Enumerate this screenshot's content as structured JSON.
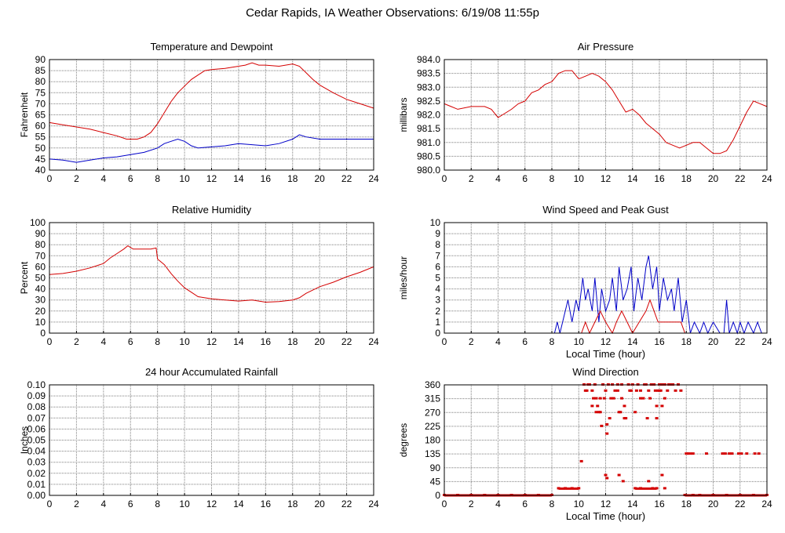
{
  "page": {
    "title": "Cedar Rapids, IA Weather Observations: 6/19/08 11:55p"
  },
  "colors": {
    "red": "#d40000",
    "blue": "#0000c8",
    "grid": "#7f7f7f"
  },
  "chart_data": [
    {
      "type": "line",
      "title": "Temperature and Dewpoint",
      "xlabel": "",
      "ylabel": "Fahrenheit",
      "xlim": [
        0,
        24
      ],
      "ylim": [
        40,
        90
      ],
      "xticks": [
        0,
        2,
        4,
        6,
        8,
        10,
        12,
        14,
        16,
        18,
        20,
        22,
        24
      ],
      "yticks": [
        40,
        45,
        50,
        55,
        60,
        65,
        70,
        75,
        80,
        85,
        90
      ],
      "ytick_labels": [
        "40",
        "45",
        "50",
        "55",
        "60",
        "65",
        "70",
        "75",
        "80",
        "85",
        "90"
      ],
      "grid": true,
      "series": [
        {
          "color": "#d40000",
          "x": [
            0,
            1,
            2,
            3,
            4,
            5,
            5.7,
            6.5,
            7,
            7.5,
            8,
            8.5,
            9,
            9.5,
            10,
            10.5,
            11,
            11.5,
            12,
            13,
            14,
            14.5,
            15,
            15.5,
            16,
            17,
            18,
            18.5,
            19,
            19.5,
            20,
            21,
            22,
            23,
            24
          ],
          "y": [
            61.5,
            60.5,
            59.5,
            58.5,
            57,
            55.5,
            54,
            54,
            55,
            57,
            61,
            66,
            71,
            75,
            78,
            81,
            83,
            85,
            85.5,
            86,
            87,
            87.5,
            88.5,
            87.5,
            87.5,
            87,
            88,
            87,
            84,
            81,
            78.5,
            75,
            72,
            70,
            68
          ]
        },
        {
          "color": "#0000c8",
          "x": [
            0,
            1,
            2,
            3,
            4,
            5,
            6,
            7,
            8,
            8.5,
            9,
            9.5,
            10,
            10.5,
            11,
            12,
            13,
            14,
            15,
            16,
            17,
            18,
            18.5,
            19,
            20,
            21,
            22,
            23,
            24
          ],
          "y": [
            45,
            44.5,
            43.5,
            44.5,
            45.5,
            46,
            47,
            48,
            50,
            52,
            53,
            54,
            53,
            51,
            50,
            50.5,
            51,
            52,
            51.5,
            51,
            52,
            54,
            56,
            55,
            54,
            54,
            54,
            54,
            54
          ]
        }
      ]
    },
    {
      "type": "line",
      "title": "Air Pressure",
      "xlabel": "",
      "ylabel": "millibars",
      "xlim": [
        0,
        24
      ],
      "ylim": [
        980.0,
        984.0
      ],
      "xticks": [
        0,
        2,
        4,
        6,
        8,
        10,
        12,
        14,
        16,
        18,
        20,
        22,
        24
      ],
      "yticks": [
        980.0,
        980.5,
        981.0,
        981.5,
        982.0,
        982.5,
        983.0,
        983.5,
        984.0
      ],
      "ytick_labels": [
        "980.0",
        "980.5",
        "981.0",
        "981.5",
        "982.0",
        "982.5",
        "983.0",
        "983.5",
        "984.0"
      ],
      "grid": true,
      "series": [
        {
          "color": "#d40000",
          "x": [
            0,
            0.5,
            1,
            2,
            3,
            3.5,
            4,
            5,
            5.5,
            6,
            6.5,
            7,
            7.5,
            8,
            8.5,
            9,
            9.5,
            10,
            10.5,
            11,
            11.5,
            12,
            12.5,
            13,
            13.5,
            14,
            14.5,
            15,
            15.5,
            16,
            16.5,
            17,
            17.5,
            18,
            18.5,
            19,
            19.5,
            20,
            20.5,
            21,
            21.5,
            22,
            22.5,
            23,
            23.5,
            24
          ],
          "y": [
            982.4,
            982.3,
            982.2,
            982.3,
            982.3,
            982.2,
            981.9,
            982.2,
            982.4,
            982.5,
            982.8,
            982.9,
            983.1,
            983.2,
            983.5,
            983.6,
            983.6,
            983.3,
            983.4,
            983.5,
            983.4,
            983.2,
            982.9,
            982.5,
            982.1,
            982.2,
            982.0,
            981.7,
            981.5,
            981.3,
            981.0,
            980.9,
            980.8,
            980.9,
            981.0,
            981.0,
            980.8,
            980.6,
            980.6,
            980.7,
            981.1,
            981.6,
            982.1,
            982.5,
            982.4,
            982.3
          ]
        }
      ]
    },
    {
      "type": "line",
      "title": "Relative Humidity",
      "xlabel": "",
      "ylabel": "Percent",
      "xlim": [
        0,
        24
      ],
      "ylim": [
        0,
        100
      ],
      "xticks": [
        0,
        2,
        4,
        6,
        8,
        10,
        12,
        14,
        16,
        18,
        20,
        22,
        24
      ],
      "yticks": [
        0,
        10,
        20,
        30,
        40,
        50,
        60,
        70,
        80,
        90,
        100
      ],
      "ytick_labels": [
        "0",
        "10",
        "20",
        "30",
        "40",
        "50",
        "60",
        "70",
        "80",
        "90",
        "100"
      ],
      "grid": true,
      "series": [
        {
          "color": "#d40000",
          "x": [
            0,
            1,
            2,
            3,
            4,
            4.5,
            5,
            5.5,
            5.8,
            6.2,
            7,
            7.5,
            7.9,
            8,
            8.5,
            9,
            9.5,
            10,
            10.5,
            11,
            11.5,
            12,
            13,
            14,
            15,
            16,
            17,
            18,
            18.5,
            19,
            20,
            21,
            22,
            23,
            24
          ],
          "y": [
            53,
            54,
            56,
            59,
            63,
            68,
            72,
            76,
            79,
            76,
            76,
            76,
            77,
            67,
            62,
            54,
            47,
            41,
            37,
            33,
            32,
            31,
            30,
            29,
            30,
            28,
            28.5,
            30,
            32,
            36,
            42,
            46,
            51,
            55,
            60
          ]
        }
      ]
    },
    {
      "type": "line",
      "title": "Wind Speed and Peak Gust",
      "xlabel": "Local Time (hour)",
      "ylabel": "miles/hour",
      "xlim": [
        0,
        24
      ],
      "ylim": [
        0,
        10
      ],
      "xticks": [
        0,
        2,
        4,
        6,
        8,
        10,
        12,
        14,
        16,
        18,
        20,
        22,
        24
      ],
      "yticks": [
        0,
        1,
        2,
        3,
        4,
        5,
        6,
        7,
        8,
        9,
        10
      ],
      "ytick_labels": [
        "0",
        "1",
        "2",
        "3",
        "4",
        "5",
        "6",
        "7",
        "8",
        "9",
        "10"
      ],
      "grid": true,
      "series": [
        {
          "color": "#0000c8",
          "x": [
            0,
            8.2,
            8.4,
            8.6,
            8.8,
            9.0,
            9.2,
            9.5,
            9.8,
            10.0,
            10.3,
            10.5,
            10.7,
            11.0,
            11.2,
            11.5,
            11.7,
            12.0,
            12.3,
            12.5,
            12.8,
            13.0,
            13.3,
            13.6,
            13.9,
            14.1,
            14.4,
            14.7,
            15.0,
            15.2,
            15.5,
            15.8,
            16.0,
            16.3,
            16.6,
            16.9,
            17.1,
            17.4,
            17.7,
            18.0,
            18.3,
            18.6,
            19.0,
            19.3,
            19.6,
            20.0,
            20.5,
            20.8,
            21.0,
            21.2,
            21.5,
            21.8,
            22.0,
            22.3,
            22.6,
            23.0,
            23.3,
            23.6
          ],
          "y": [
            0,
            0,
            1,
            0,
            1,
            2,
            3,
            1,
            3,
            2,
            5,
            3,
            4,
            2,
            5,
            1,
            4,
            2,
            3,
            5,
            2,
            6,
            3,
            4,
            6,
            2,
            5,
            3,
            6,
            7,
            4,
            6,
            2,
            5,
            3,
            4,
            2,
            5,
            1,
            3,
            0,
            1,
            0,
            1,
            0,
            1,
            0,
            0,
            3,
            0,
            1,
            0,
            1,
            0,
            1,
            0,
            1,
            0
          ]
        },
        {
          "color": "#d40000",
          "x": [
            0,
            10.2,
            10.5,
            10.8,
            11.2,
            11.6,
            12.0,
            12.5,
            12.8,
            13.2,
            13.6,
            14.0,
            14.5,
            15.0,
            15.3,
            15.6,
            15.9,
            16.2,
            16.6,
            17.0,
            17.3,
            17.6,
            17.9,
            18.2
          ],
          "y": [
            0,
            0,
            1,
            0,
            1,
            2,
            1,
            0,
            1,
            2,
            1,
            0,
            1,
            2,
            3,
            2,
            1,
            1,
            1,
            1,
            1,
            1,
            0,
            0
          ]
        }
      ]
    },
    {
      "type": "line",
      "title": "24 hour Accumulated Rainfall",
      "xlabel": "",
      "ylabel": "Inches",
      "xlim": [
        0,
        24
      ],
      "ylim": [
        0,
        0.1
      ],
      "xticks": [
        0,
        2,
        4,
        6,
        8,
        10,
        12,
        14,
        16,
        18,
        20,
        22,
        24
      ],
      "yticks": [
        0,
        0.01,
        0.02,
        0.03,
        0.04,
        0.05,
        0.06,
        0.07,
        0.08,
        0.09,
        0.1
      ],
      "ytick_labels": [
        "0.00",
        "0.01",
        "0.02",
        "0.03",
        "0.04",
        "0.05",
        "0.06",
        "0.07",
        "0.08",
        "0.09",
        "0.10"
      ],
      "grid": true,
      "series": [
        {
          "color": "#d40000",
          "x": [
            0,
            24
          ],
          "y": [
            0,
            0
          ]
        }
      ]
    },
    {
      "type": "scatter",
      "title": "Wind Direction",
      "xlabel": "Local Time (hour)",
      "ylabel": "degrees",
      "xlim": [
        0,
        24
      ],
      "ylim": [
        0,
        360
      ],
      "xticks": [
        0,
        2,
        4,
        6,
        8,
        10,
        12,
        14,
        16,
        18,
        20,
        22,
        24
      ],
      "yticks": [
        0,
        45,
        90,
        135,
        180,
        225,
        270,
        315,
        360
      ],
      "ytick_labels": [
        "0",
        "45",
        "90",
        "135",
        "180",
        "225",
        "270",
        "315",
        "360"
      ],
      "grid": true,
      "series": [
        {
          "color": "#d40000",
          "x": [
            10.2,
            10.4,
            10.6,
            10.8,
            11.0,
            11.1,
            11.2,
            11.3,
            11.4,
            11.5,
            11.6,
            11.7,
            11.8,
            12.0,
            12.1,
            12.2,
            12.4,
            12.6,
            12.7,
            12.9,
            13.0,
            13.2,
            13.4,
            13.5,
            13.7,
            13.9,
            14.0,
            14.3,
            14.4,
            14.6,
            14.8,
            15.0,
            15.2,
            15.4,
            15.6,
            15.7,
            15.8,
            16.0,
            16.1,
            16.2,
            16.4,
            16.6,
            16.8,
            17.0,
            17.2,
            17.4,
            17.6,
            11.0,
            11.3,
            11.6,
            12.1,
            12.5,
            13.1,
            13.4,
            13.8,
            14.2,
            14.9,
            15.3,
            15.9,
            16.3,
            10.5,
            10.7,
            11.9,
            12.3,
            12.9,
            13.2,
            14.6,
            15.1,
            15.5,
            15.8,
            16.0,
            16.1,
            16.4,
            16.7,
            12.0,
            12.1,
            15.2,
            18.0,
            18.1,
            18.3,
            18.5,
            19.5,
            20.7,
            20.9,
            21.2,
            21.4,
            21.9,
            22.1,
            22.5,
            23.1,
            23.4
          ],
          "y": [
            110,
            360,
            340,
            360,
            340,
            315,
            360,
            315,
            290,
            270,
            270,
            225,
            360,
            340,
            200,
            360,
            315,
            315,
            340,
            360,
            270,
            315,
            250,
            250,
            360,
            340,
            360,
            340,
            360,
            340,
            315,
            360,
            340,
            360,
            360,
            340,
            250,
            360,
            340,
            290,
            360,
            340,
            360,
            360,
            340,
            360,
            340,
            290,
            270,
            315,
            230,
            360,
            270,
            290,
            340,
            270,
            360,
            315,
            340,
            360,
            340,
            360,
            315,
            250,
            340,
            360,
            315,
            250,
            360,
            290,
            340,
            360,
            315,
            360,
            65,
            55,
            45,
            135,
            135,
            135,
            135,
            135,
            135,
            135,
            135,
            135,
            135,
            135,
            135,
            135,
            135
          ]
        },
        {
          "color": "#d40000",
          "x": [
            0,
            1,
            2,
            3,
            4,
            5,
            6,
            7,
            8,
            8.5,
            9,
            9.5,
            10,
            13.0,
            13.3,
            14.2,
            14.6,
            15.5,
            15.8,
            16.2,
            16.4,
            17.9,
            18.5,
            19,
            20,
            21,
            22,
            23,
            24
          ],
          "y": [
            0,
            0,
            0,
            0,
            0,
            0,
            0,
            0,
            0,
            22,
            22,
            22,
            22,
            65,
            45,
            22,
            22,
            22,
            22,
            65,
            22,
            0,
            0,
            0,
            0,
            0,
            0,
            0,
            0
          ]
        }
      ]
    }
  ]
}
